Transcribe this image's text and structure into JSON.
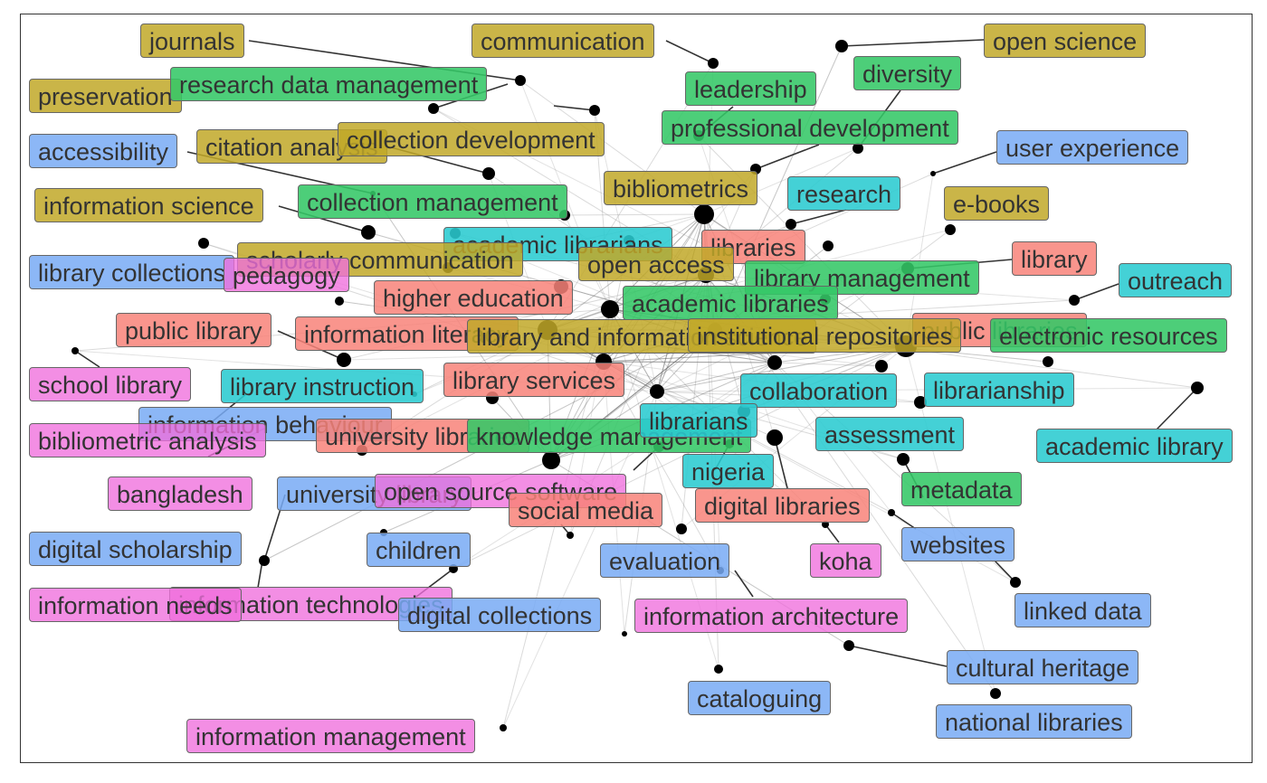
{
  "colors": {
    "yellow": "#c1a828",
    "green": "#34c766",
    "cyan": "#2acbd0",
    "salmon": "#f88379",
    "blue": "#78aaf5",
    "pink": "#f06edc"
  },
  "labels": [
    {
      "text": "journals",
      "color": "yellow"
    },
    {
      "text": "communication",
      "color": "yellow"
    },
    {
      "text": "open science",
      "color": "yellow"
    },
    {
      "text": "preservation",
      "color": "yellow"
    },
    {
      "text": "research data management",
      "color": "green"
    },
    {
      "text": "leadership",
      "color": "green"
    },
    {
      "text": "diversity",
      "color": "green"
    },
    {
      "text": "professional development",
      "color": "green"
    },
    {
      "text": "accessibility",
      "color": "blue"
    },
    {
      "text": "citation analysis",
      "color": "yellow"
    },
    {
      "text": "collection development",
      "color": "yellow"
    },
    {
      "text": "user experience",
      "color": "blue"
    },
    {
      "text": "bibliometrics",
      "color": "yellow"
    },
    {
      "text": "research",
      "color": "cyan"
    },
    {
      "text": "information science",
      "color": "yellow"
    },
    {
      "text": "collection management",
      "color": "green"
    },
    {
      "text": "e-books",
      "color": "yellow"
    },
    {
      "text": "academic librarians",
      "color": "cyan"
    },
    {
      "text": "libraries",
      "color": "salmon"
    },
    {
      "text": "scholarly communication",
      "color": "yellow"
    },
    {
      "text": "open access",
      "color": "yellow"
    },
    {
      "text": "library",
      "color": "salmon"
    },
    {
      "text": "library collections",
      "color": "blue"
    },
    {
      "text": "pedagogy",
      "color": "pink"
    },
    {
      "text": "library management",
      "color": "green"
    },
    {
      "text": "outreach",
      "color": "cyan"
    },
    {
      "text": "higher education",
      "color": "salmon"
    },
    {
      "text": "academic libraries",
      "color": "green"
    },
    {
      "text": "public library",
      "color": "salmon"
    },
    {
      "text": "information literacy",
      "color": "salmon"
    },
    {
      "text": "public libraries",
      "color": "salmon"
    },
    {
      "text": "library and information science",
      "color": "yellow"
    },
    {
      "text": "institutional repositories",
      "color": "yellow"
    },
    {
      "text": "electronic resources",
      "color": "green"
    },
    {
      "text": "school library",
      "color": "pink"
    },
    {
      "text": "library instruction",
      "color": "cyan"
    },
    {
      "text": "library services",
      "color": "salmon"
    },
    {
      "text": "collaboration",
      "color": "cyan"
    },
    {
      "text": "librarianship",
      "color": "cyan"
    },
    {
      "text": "information behaviour",
      "color": "blue"
    },
    {
      "text": "bibliometric analysis",
      "color": "pink"
    },
    {
      "text": "university libraries",
      "color": "salmon"
    },
    {
      "text": "knowledge management",
      "color": "green"
    },
    {
      "text": "librarians",
      "color": "cyan"
    },
    {
      "text": "assessment",
      "color": "cyan"
    },
    {
      "text": "academic library",
      "color": "cyan"
    },
    {
      "text": "nigeria",
      "color": "cyan"
    },
    {
      "text": "metadata",
      "color": "green"
    },
    {
      "text": "bangladesh",
      "color": "pink"
    },
    {
      "text": "university library",
      "color": "blue"
    },
    {
      "text": "open source software",
      "color": "pink"
    },
    {
      "text": "social media",
      "color": "salmon"
    },
    {
      "text": "digital libraries",
      "color": "salmon"
    },
    {
      "text": "digital scholarship",
      "color": "blue"
    },
    {
      "text": "children",
      "color": "blue"
    },
    {
      "text": "websites",
      "color": "blue"
    },
    {
      "text": "evaluation",
      "color": "blue"
    },
    {
      "text": "koha",
      "color": "pink"
    },
    {
      "text": "information technologies",
      "color": "pink"
    },
    {
      "text": "information needs",
      "color": "pink"
    },
    {
      "text": "digital collections",
      "color": "blue"
    },
    {
      "text": "information architecture",
      "color": "pink"
    },
    {
      "text": "linked data",
      "color": "blue"
    },
    {
      "text": "cultural heritage",
      "color": "blue"
    },
    {
      "text": "cataloguing",
      "color": "blue"
    },
    {
      "text": "national libraries",
      "color": "blue"
    },
    {
      "text": "information management",
      "color": "pink"
    }
  ]
}
